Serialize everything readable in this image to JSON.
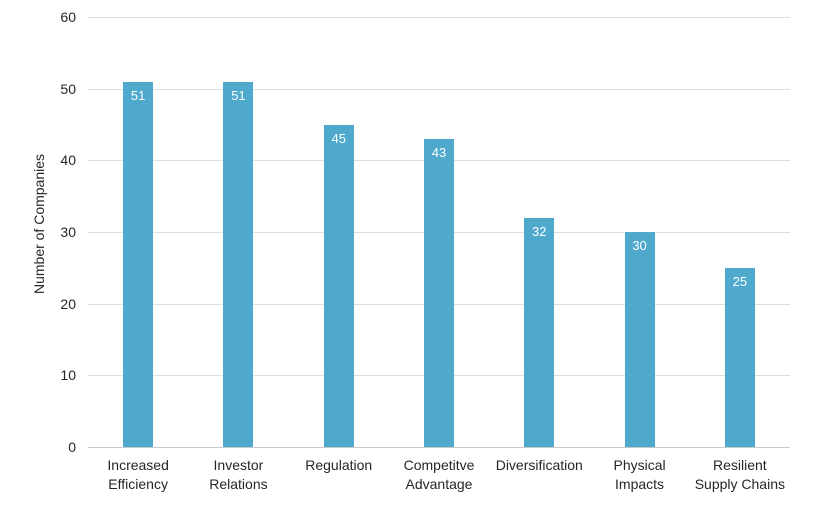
{
  "chart_data": {
    "type": "bar",
    "title": "",
    "xlabel": "",
    "ylabel": "Number of Companies",
    "categories": [
      "Increased Efficiency",
      "Investor Relations",
      "Regulation",
      "Competitve Advantage",
      "Diversification",
      "Physical Impacts",
      "Resilient Supply Chains"
    ],
    "label_lines": [
      [
        "Increased",
        "Efficiency"
      ],
      [
        "Investor",
        "Relations"
      ],
      [
        "Regulation"
      ],
      [
        "Competitve",
        "Advantage"
      ],
      [
        "Diversification"
      ],
      [
        "Physical",
        "Impacts"
      ],
      [
        "Resilient",
        "Supply Chains"
      ]
    ],
    "values": [
      51,
      51,
      45,
      43,
      32,
      30,
      25
    ],
    "ylim": [
      0,
      60
    ],
    "yticks": [
      0,
      10,
      20,
      30,
      40,
      50,
      60
    ],
    "grid": "horizontal",
    "legend": "none",
    "colors": {
      "bar": "#4FA9CD",
      "value_label": "#FFFFFF",
      "axis_text": "#262626",
      "gridline": "#DEDEDE",
      "baseline": "#C9C9C9",
      "background": "#FFFFFF"
    }
  }
}
